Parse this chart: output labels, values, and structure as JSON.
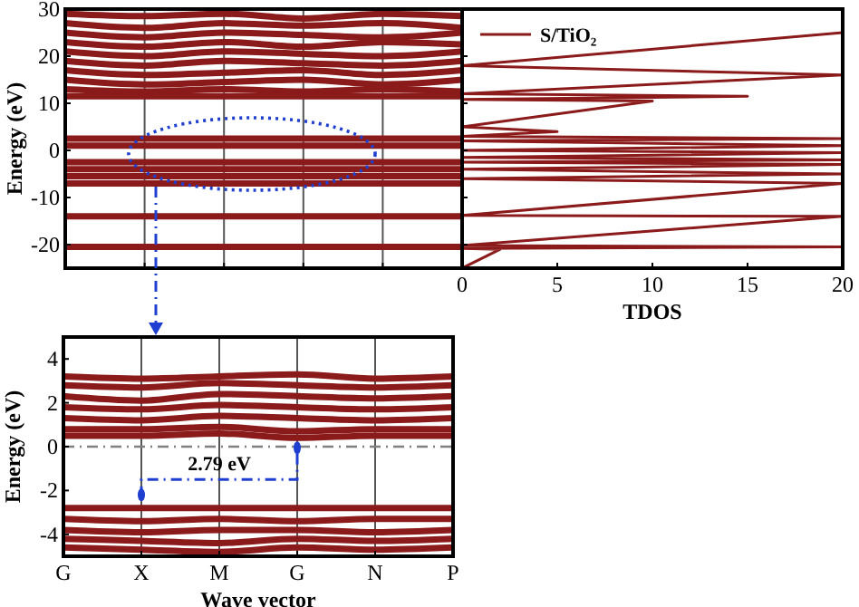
{
  "chart_data": [
    {
      "type": "line",
      "ylabel": "Energy (eV)",
      "categories": [
        null,
        null,
        null,
        null,
        null,
        null
      ],
      "ylim": [
        -25,
        30
      ],
      "yticks": [
        -20,
        -10,
        0,
        10,
        20,
        30
      ],
      "grid": "x",
      "series": [
        {
          "color": "#8b1a1a",
          "values": [
            29,
            28.5,
            29,
            28,
            29,
            28.5
          ]
        },
        {
          "color": "#8b1a1a",
          "values": [
            27,
            26,
            27,
            26.5,
            27,
            26
          ]
        },
        {
          "color": "#8b1a1a",
          "values": [
            25,
            24,
            25,
            24.5,
            24,
            25
          ]
        },
        {
          "color": "#8b1a1a",
          "values": [
            23,
            22,
            23,
            22,
            23,
            22.5
          ]
        },
        {
          "color": "#8b1a1a",
          "values": [
            21,
            20,
            21,
            20.5,
            20,
            21
          ]
        },
        {
          "color": "#8b1a1a",
          "values": [
            19,
            18,
            19,
            18.5,
            18,
            19
          ]
        },
        {
          "color": "#8b1a1a",
          "values": [
            17,
            16,
            16.5,
            17,
            16,
            17
          ]
        },
        {
          "color": "#8b1a1a",
          "values": [
            15,
            14,
            14.5,
            15,
            14,
            15
          ]
        },
        {
          "color": "#8b1a1a",
          "values": [
            13,
            12.5,
            13,
            12.5,
            13,
            12.5
          ]
        },
        {
          "color": "#8b1a1a",
          "values": [
            11.5,
            11.5,
            11.5,
            11.5,
            11.5,
            11.5
          ]
        },
        {
          "color": "#8b1a1a",
          "values": [
            2.5,
            2.5,
            2.5,
            2.5,
            2.5,
            2.5
          ]
        },
        {
          "color": "#8b1a1a",
          "values": [
            1,
            1,
            1,
            1,
            1,
            1
          ]
        },
        {
          "color": "#8b1a1a",
          "values": [
            -2.5,
            -2.5,
            -2.5,
            -2.5,
            -2.5,
            -2.5
          ]
        },
        {
          "color": "#8b1a1a",
          "values": [
            -4,
            -4,
            -4,
            -4,
            -4,
            -4
          ]
        },
        {
          "color": "#8b1a1a",
          "values": [
            -5.5,
            -5.5,
            -5.5,
            -5.5,
            -5.5,
            -5.5
          ]
        },
        {
          "color": "#8b1a1a",
          "values": [
            -7,
            -7,
            -7,
            -7,
            -7,
            -7
          ]
        },
        {
          "color": "#8b1a1a",
          "values": [
            -14,
            -14,
            -14,
            -14,
            -14,
            -14
          ]
        },
        {
          "color": "#8b1a1a",
          "values": [
            -20.5,
            -20.5,
            -20.5,
            -20.5,
            -20.5,
            -20.5
          ]
        }
      ]
    },
    {
      "type": "line",
      "xlabel": "TDOS",
      "xlim": [
        0,
        20
      ],
      "xticks": [
        0,
        5,
        10,
        15,
        20
      ],
      "ylim": [
        -25,
        30
      ],
      "yticks": [
        -20,
        -10,
        0,
        10,
        20,
        30
      ],
      "tick_labels": "x",
      "legend": "top left",
      "series": [
        {
          "name": "S/TiO₂",
          "color": "#8b1a1a",
          "x": [
            0,
            2,
            0,
            20,
            0,
            20,
            0,
            20,
            0,
            20,
            0,
            20,
            0,
            20,
            0,
            20,
            0,
            20,
            0,
            20,
            0,
            5,
            0,
            10,
            0,
            15,
            0,
            20,
            0,
            20
          ],
          "values": [
            -25,
            -21,
            -20.8,
            -20.5,
            -20.2,
            -14,
            -13.8,
            -7,
            -6,
            -5,
            -4,
            -3,
            -2.5,
            -2,
            -1.5,
            -0.5,
            0,
            1,
            2,
            2.5,
            3,
            4,
            5,
            10.5,
            10.8,
            11.5,
            12,
            16,
            18,
            25
          ]
        }
      ]
    },
    {
      "type": "line",
      "ylabel": "Energy (eV)",
      "xlabel": "Wave vector",
      "categories": [
        "G",
        "X",
        "M",
        "G",
        "N",
        "P"
      ],
      "ylim": [
        -5,
        5
      ],
      "yticks": [
        -4,
        -2,
        0,
        2,
        4
      ],
      "grid": "x",
      "ref_lines": [
        {
          "axis": "y",
          "value": 0,
          "color": "#808080",
          "line_style": "dashed"
        }
      ],
      "annotations": [
        "2.79 eV"
      ],
      "series": [
        {
          "color": "#8b1a1a",
          "values": [
            3.2,
            3.1,
            3.2,
            3.3,
            3.1,
            3.2
          ]
        },
        {
          "color": "#8b1a1a",
          "values": [
            2.8,
            2.7,
            2.9,
            2.8,
            2.7,
            2.8
          ]
        },
        {
          "color": "#8b1a1a",
          "values": [
            2.3,
            2.1,
            2.4,
            2.3,
            2.2,
            2.3
          ]
        },
        {
          "color": "#8b1a1a",
          "values": [
            1.8,
            1.7,
            1.9,
            1.8,
            1.7,
            1.8
          ]
        },
        {
          "color": "#8b1a1a",
          "values": [
            1.3,
            1.2,
            1.4,
            1.3,
            1.2,
            1.3
          ]
        },
        {
          "color": "#8b1a1a",
          "values": [
            0.8,
            0.8,
            0.9,
            0.7,
            0.8,
            0.8
          ]
        },
        {
          "color": "#8b1a1a",
          "values": [
            0.5,
            0.5,
            0.6,
            0.4,
            0.5,
            0.5
          ]
        },
        {
          "color": "#8b1a1a",
          "values": [
            -2.8,
            -2.8,
            -2.8,
            -2.8,
            -2.8,
            -2.8
          ]
        },
        {
          "color": "#8b1a1a",
          "values": [
            -3.3,
            -3.4,
            -3.3,
            -3.4,
            -3.3,
            -3.3
          ]
        },
        {
          "color": "#8b1a1a",
          "values": [
            -3.8,
            -3.9,
            -3.8,
            -3.8,
            -3.9,
            -3.8
          ]
        },
        {
          "color": "#8b1a1a",
          "values": [
            -4.2,
            -4.3,
            -4.4,
            -4.2,
            -4.3,
            -4.2
          ]
        },
        {
          "color": "#8b1a1a",
          "values": [
            -4.6,
            -4.7,
            -4.8,
            -4.6,
            -4.7,
            -4.6
          ]
        }
      ]
    }
  ]
}
